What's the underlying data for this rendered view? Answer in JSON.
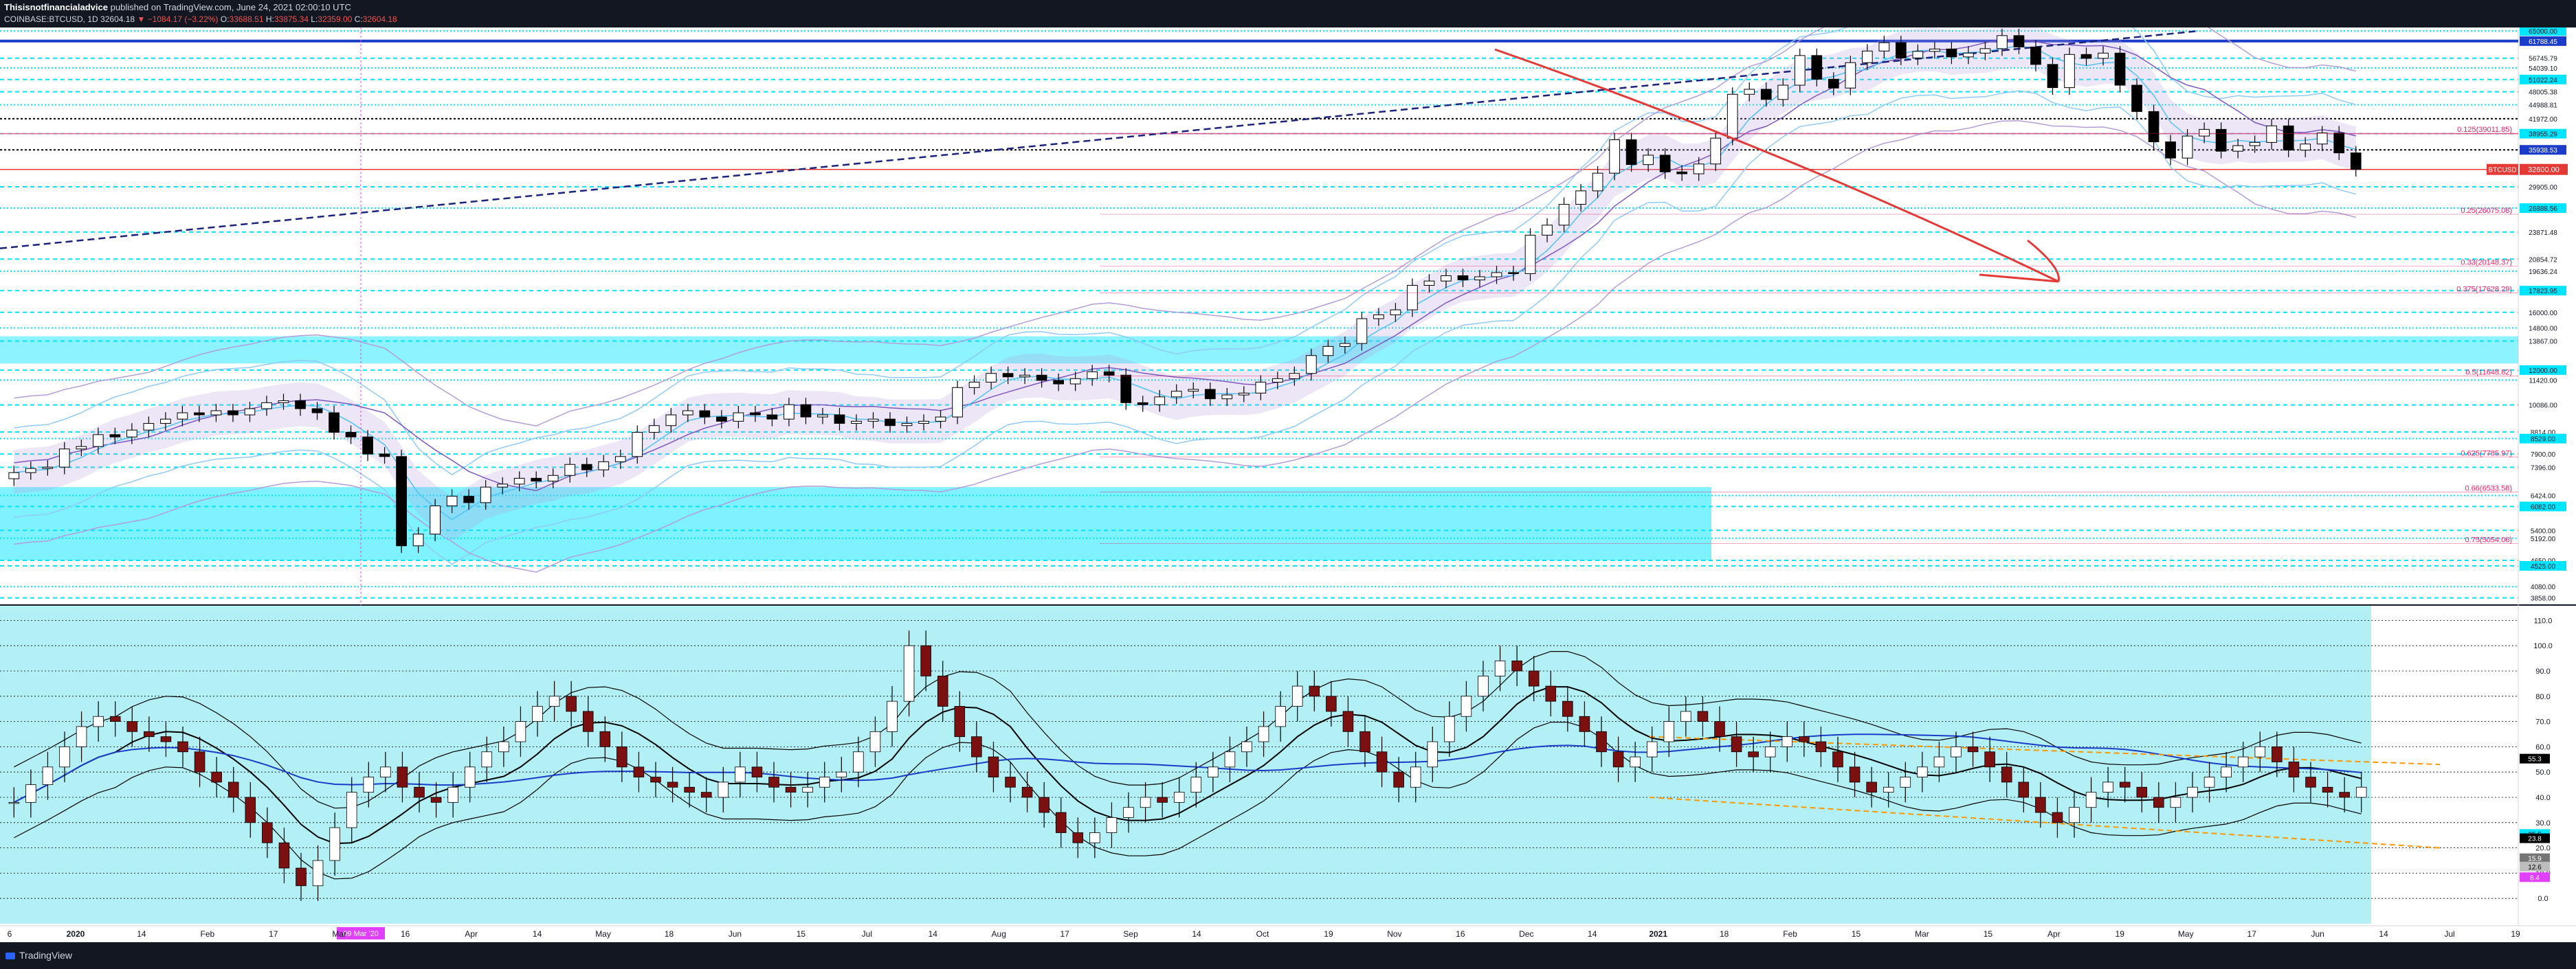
{
  "header": {
    "author": "Thisisnotfinancialadvice",
    "published": "published on TradingView.com, June 24, 2021 02:00:10 UTC",
    "symbol": "COINBASE:BTCUSD, 1D",
    "price": "32604.18",
    "change": "▼ −1084.17 (−3.22%)",
    "o_label": "O:",
    "o": "33688.51",
    "h_label": "H:",
    "h": "33875.34",
    "l_label": "L:",
    "l": "32359.00",
    "c_label": "C:",
    "c": "32604.18"
  },
  "footer": {
    "brand": "TradingView"
  },
  "colors": {
    "background": "#131722",
    "cyan": "#00e5ff",
    "navy": "#1a237e",
    "red_arrow": "#e53935",
    "fib_pink": "#e91e63",
    "osc_bg": "#b2f0f5"
  },
  "chart_data": {
    "type": "candlestick",
    "symbol": "BTCUSD",
    "timeframe": "1D",
    "price_axis_labels": [
      "65000.00",
      "61788.45",
      "56745.79",
      "54039.10",
      "51022.24",
      "48005.38",
      "44988.81",
      "41972.00",
      "38955.29",
      "35938.53",
      "32600.00",
      "29905.00",
      "26888.56",
      "23871.48",
      "20854.72",
      "19636.24",
      "17823.95",
      "16000.00",
      "14800.00",
      "13867.00",
      "12000.00",
      "11420.00",
      "10086.00",
      "8814.00",
      "8529.00",
      "7900.00",
      "7396.00",
      "6424.00",
      "6082.00",
      "5400.00",
      "5192.00",
      "4650.00",
      "4525.00",
      "4080.00",
      "3858.00"
    ],
    "current_price_label": "32600.00",
    "current_price_tag": "BTCUSD",
    "fib_labels": [
      "0.125(39011.85)",
      "0.25(26075.08)",
      "0.33(20148.37)",
      "0.375(17628.29)",
      "0.5(11648.82)",
      "0.625(7785.97)",
      "0.66(6533.58)",
      "0.75(5054.06)"
    ],
    "oscillator_axis_labels": [
      "110.0",
      "100.0",
      "90.0",
      "80.0",
      "70.0",
      "60.0",
      "50.0",
      "40.0",
      "30.0",
      "20.0",
      "10.0",
      "0.0"
    ],
    "oscillator_value_tags": [
      "55.3",
      "25.5",
      "23.8",
      "15.9",
      "12.6",
      "8.4"
    ],
    "time_labels": [
      "6",
      "2020",
      "14",
      "Feb",
      "17",
      "Mar",
      "16",
      "Apr",
      "14",
      "May",
      "18",
      "Jun",
      "15",
      "Jul",
      "14",
      "Aug",
      "17",
      "Sep",
      "14",
      "Oct",
      "19",
      "Nov",
      "16",
      "Dec",
      "14",
      "2021",
      "18",
      "Feb",
      "15",
      "Mar",
      "15",
      "Apr",
      "19",
      "May",
      "17",
      "Jun",
      "14",
      "Jul",
      "19"
    ],
    "crosshair_date_label": "09 Mar '20",
    "candles_close": [
      7200,
      7350,
      7400,
      8100,
      8200,
      8700,
      8600,
      8900,
      9200,
      9400,
      9700,
      9600,
      9800,
      9600,
      9900,
      10200,
      10300,
      9900,
      9700,
      8800,
      8600,
      7900,
      7800,
      5000,
      5300,
      6100,
      6400,
      6200,
      6700,
      6800,
      7000,
      6900,
      7100,
      7500,
      7300,
      7600,
      7800,
      8800,
      9100,
      9600,
      9800,
      9500,
      9300,
      9700,
      9600,
      9400,
      10100,
      9500,
      9600,
      9200,
      9300,
      9400,
      9100,
      9200,
      9300,
      9500,
      11000,
      11300,
      11800,
      11600,
      11700,
      11400,
      11200,
      11500,
      11900,
      11700,
      10200,
      10100,
      10500,
      10800,
      10900,
      10400,
      10600,
      10700,
      11300,
      11500,
      11800,
      12900,
      13500,
      13700,
      15500,
      15800,
      16200,
      18300,
      18700,
      19200,
      18800,
      19100,
      19500,
      19400,
      23500,
      24700,
      27400,
      29300,
      32000,
      37800,
      33400,
      35000,
      32200,
      31900,
      33500,
      38100,
      47400,
      48600,
      46200,
      49600,
      57500,
      51100,
      48900,
      55500,
      58800,
      61300,
      56800,
      58700,
      59400,
      57100,
      58200,
      59500,
      63500,
      60000,
      55000,
      49000,
      57800,
      56700,
      58200,
      49600,
      43500,
      37400,
      34500,
      38500,
      39800,
      35700,
      36700,
      37300,
      40500,
      35900,
      37000,
      39100,
      35400,
      32600
    ],
    "price_min": 3800,
    "price_max": 65000,
    "oscillator_close": [
      38,
      45,
      52,
      60,
      68,
      72,
      70,
      66,
      64,
      62,
      58,
      50,
      46,
      40,
      30,
      22,
      12,
      5,
      15,
      28,
      42,
      48,
      52,
      44,
      40,
      38,
      44,
      52,
      58,
      62,
      70,
      76,
      80,
      74,
      66,
      60,
      52,
      48,
      46,
      44,
      42,
      40,
      46,
      52,
      48,
      44,
      42,
      44,
      48,
      50,
      58,
      66,
      78,
      100,
      88,
      76,
      64,
      56,
      48,
      44,
      40,
      34,
      26,
      22,
      26,
      32,
      36,
      40,
      38,
      42,
      48,
      52,
      58,
      62,
      68,
      76,
      84,
      80,
      74,
      66,
      58,
      50,
      44,
      52,
      62,
      72,
      80,
      88,
      94,
      90,
      84,
      78,
      72,
      66,
      58,
      52,
      56,
      62,
      70,
      74,
      70,
      64,
      58,
      56,
      60,
      64,
      62,
      58,
      52,
      46,
      42,
      44,
      48,
      52,
      56,
      60,
      58,
      52,
      46,
      40,
      34,
      30,
      36,
      42,
      46,
      44,
      40,
      36,
      40,
      44,
      48,
      52,
      56,
      60,
      54,
      48,
      44,
      42,
      40,
      44
    ],
    "oscillator_min": -10,
    "oscillator_max": 115
  }
}
